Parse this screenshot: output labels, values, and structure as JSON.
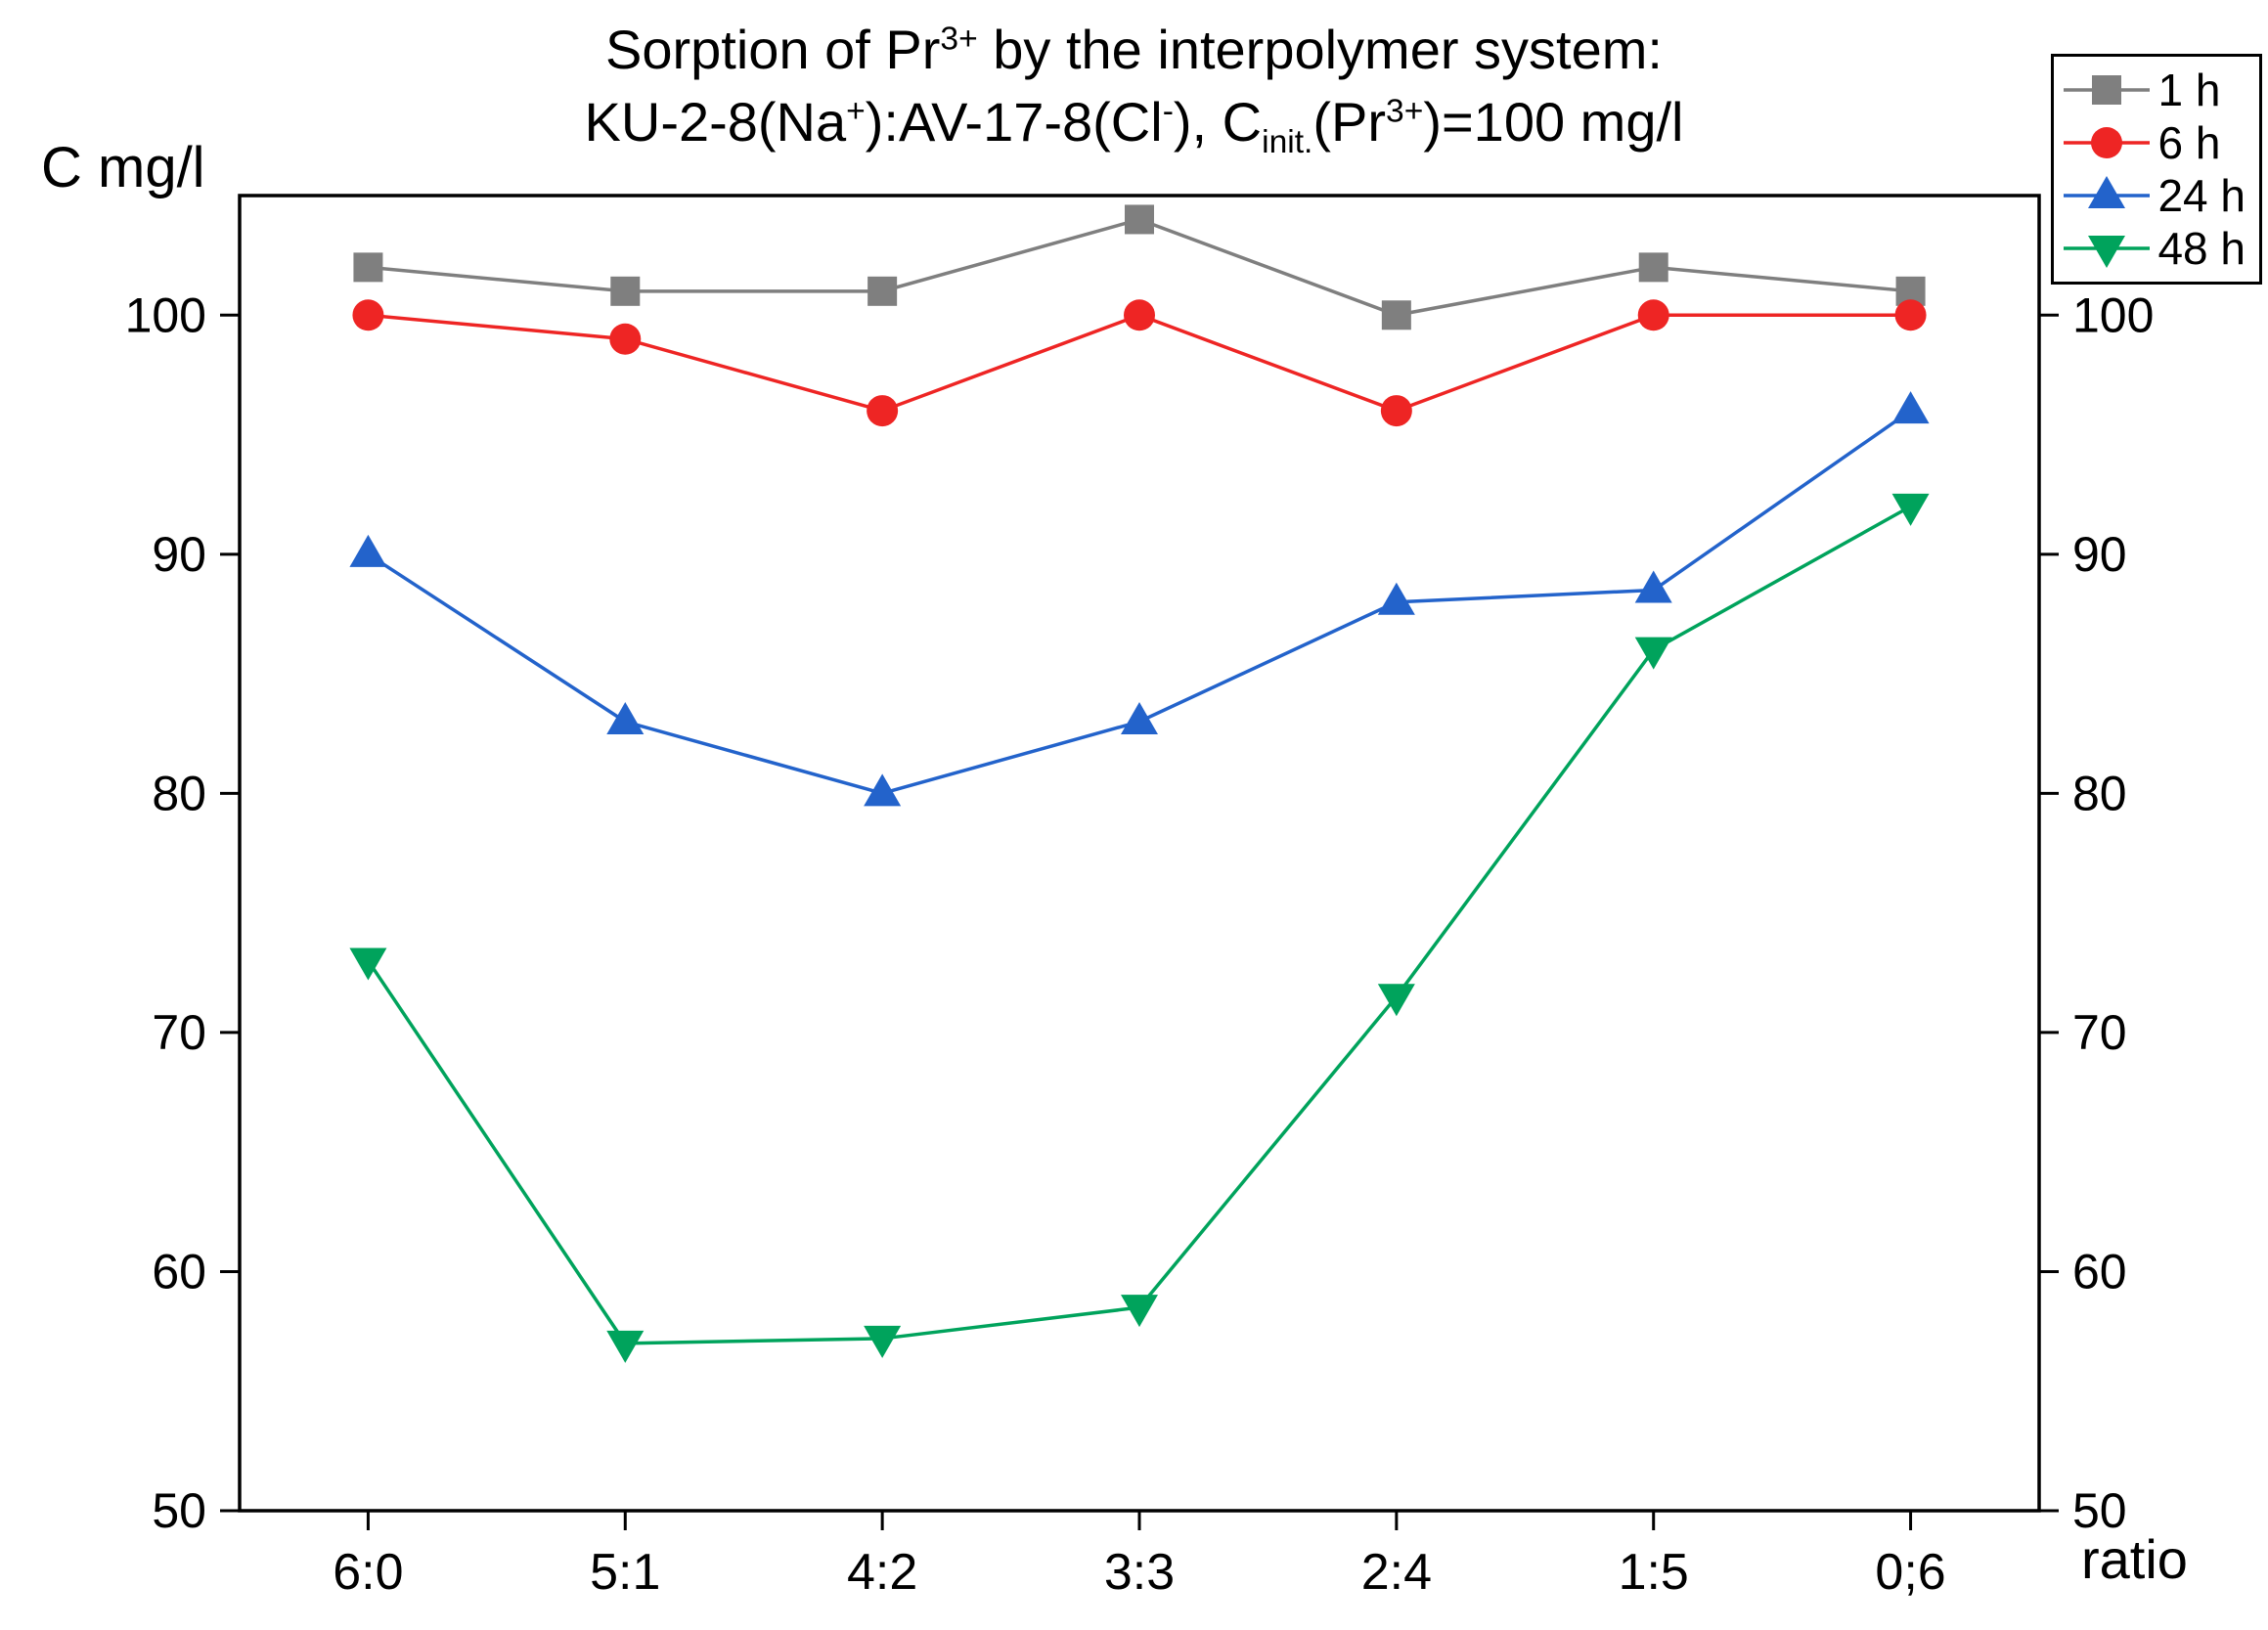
{
  "title": {
    "line1": [
      {
        "t": "Sorption of Pr"
      },
      {
        "t": "3+",
        "style": "sup"
      },
      {
        "t": " by the interpolymer system:"
      }
    ],
    "line2": [
      {
        "t": "KU-2-8(Na"
      },
      {
        "t": "+",
        "style": "sup"
      },
      {
        "t": "):AV-17-8(Cl"
      },
      {
        "t": "-",
        "style": "sup"
      },
      {
        "t": "), C"
      },
      {
        "t": "init.",
        "style": "sub"
      },
      {
        "t": "(Pr"
      },
      {
        "t": "3+",
        "style": "sup"
      },
      {
        "t": ")=100 mg/l"
      }
    ]
  },
  "axes": {
    "y_label": "C mg/l",
    "x_label": "ratio"
  },
  "chart_data": {
    "type": "line",
    "title": "Sorption of Pr3+ by the interpolymer system: KU-2-8(Na+):AV-17-8(Cl-), C init.(Pr3+)=100 mg/l",
    "xlabel": "ratio",
    "ylabel": "C mg/l",
    "categories": [
      "6:0",
      "5:1",
      "4:2",
      "3:3",
      "2:4",
      "1:5",
      "0;6"
    ],
    "y_ticks": [
      50,
      60,
      70,
      80,
      90,
      100
    ],
    "ylim": [
      50,
      105
    ],
    "grid": false,
    "legend_position": "top-right",
    "series": [
      {
        "name": "1 h",
        "marker": "square",
        "color": "#7f7f7f",
        "values": [
          102,
          101,
          101,
          104,
          100,
          102,
          101
        ]
      },
      {
        "name": "6 h",
        "marker": "circle",
        "color": "#ee2524",
        "values": [
          100,
          99,
          96,
          100,
          96,
          100,
          100
        ]
      },
      {
        "name": "24 h",
        "marker": "triangle-up",
        "color": "#2363cb",
        "values": [
          90,
          83,
          80,
          83,
          88,
          88.5,
          96
        ]
      },
      {
        "name": "48 h",
        "marker": "triangle-down",
        "color": "#00a35c",
        "values": [
          73,
          57,
          57.2,
          58.5,
          71.5,
          86,
          92
        ]
      }
    ]
  }
}
